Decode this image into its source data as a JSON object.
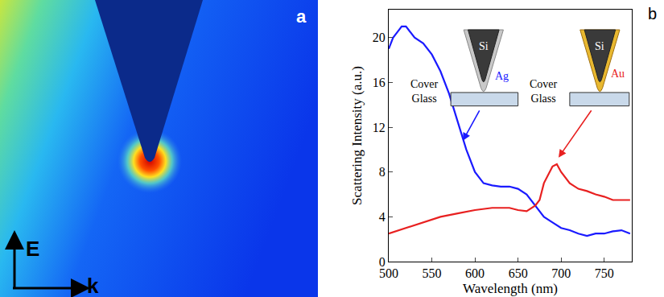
{
  "chart_data": {
    "type": "line",
    "xlabel": "Wavelength (nm)",
    "ylabel": "Scattering Intensity (a.u.)",
    "xlim": [
      500,
      782
    ],
    "xticks": [
      500,
      550,
      600,
      650,
      700,
      750
    ],
    "ylim": [
      0,
      22.5
    ],
    "yticks": [
      0,
      4,
      8,
      12,
      16,
      20
    ],
    "grid": false,
    "series": [
      {
        "color": "#1a1aff",
        "line_style": "solid",
        "x": [
          500,
          505,
          510,
          515,
          520,
          525,
          530,
          540,
          550,
          560,
          570,
          580,
          590,
          600,
          610,
          620,
          630,
          640,
          650,
          660,
          670,
          680,
          690,
          700,
          710,
          720,
          730,
          740,
          750,
          760,
          770,
          780
        ],
        "values": [
          19,
          20,
          20.5,
          21,
          21,
          20.5,
          20,
          19.5,
          18.5,
          17,
          15,
          12.5,
          10,
          8,
          7,
          6.8,
          6.7,
          6.7,
          6.5,
          6,
          5,
          4,
          3.5,
          3,
          2.8,
          2.5,
          2.3,
          2.5,
          2.5,
          2.7,
          2.8,
          2.5
        ]
      },
      {
        "color": "#e82020",
        "line_style": "solid",
        "x": [
          500,
          520,
          540,
          560,
          580,
          600,
          620,
          640,
          650,
          660,
          670,
          675,
          680,
          690,
          695,
          700,
          710,
          720,
          730,
          740,
          750,
          760,
          770,
          780
        ],
        "values": [
          2.5,
          3,
          3.5,
          4,
          4.3,
          4.6,
          4.8,
          4.8,
          4.6,
          4.5,
          5,
          5.5,
          7,
          8.5,
          8.7,
          8,
          7,
          6.5,
          6.3,
          6,
          5.8,
          5.5,
          5.5,
          5.5
        ]
      }
    ],
    "annotations": [
      "b",
      "Si",
      "Ag",
      "Cover Glass",
      "Si",
      "Au",
      "Cover Glass"
    ]
  },
  "panel_a": {
    "label": "a",
    "field_label": "E",
    "wave_label": "k"
  }
}
